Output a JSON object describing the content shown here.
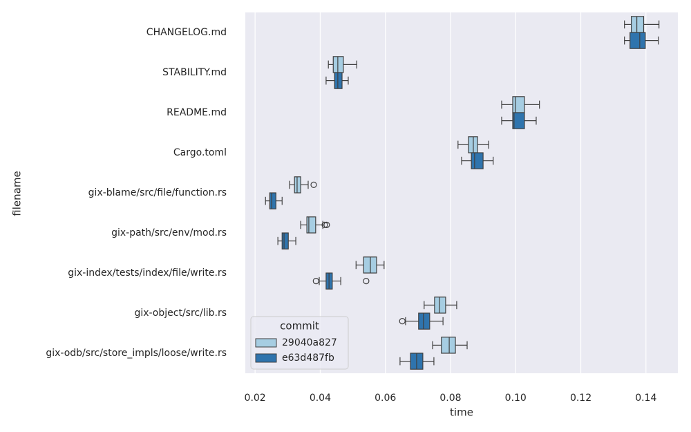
{
  "chart_data": {
    "type": "boxplot",
    "orientation": "horizontal",
    "x_label": "time",
    "y_label": "filename",
    "categories": [
      "CHANGELOG.md",
      "STABILITY.md",
      "README.md",
      "Cargo.toml",
      "gix-blame/src/file/function.rs",
      "gix-path/src/env/mod.rs",
      "gix-index/tests/index/file/write.rs",
      "gix-object/src/lib.rs",
      "gix-odb/src/store_impls/loose/write.rs"
    ],
    "xlim": [
      0.017,
      0.1498
    ],
    "xticks": [
      0.02,
      0.04,
      0.06,
      0.08,
      {
        "value": 0.1,
        "label": "0.10"
      },
      0.12,
      0.14
    ],
    "grid": true,
    "legend_title": "commit",
    "legend_position": "lower left",
    "series": [
      {
        "name": "29040a827",
        "color": "#a6cde2",
        "boxes": [
          {
            "min": 0.1334,
            "q1": 0.1355,
            "median": 0.1372,
            "q3": 0.1393,
            "max": 0.144,
            "outliers": []
          },
          {
            "min": 0.0425,
            "q1": 0.044,
            "median": 0.0454,
            "q3": 0.0471,
            "max": 0.0512,
            "outliers": []
          },
          {
            "min": 0.0957,
            "q1": 0.0991,
            "median": 0.0999,
            "q3": 0.1027,
            "max": 0.1073,
            "outliers": []
          },
          {
            "min": 0.0823,
            "q1": 0.0855,
            "median": 0.087,
            "q3": 0.0883,
            "max": 0.0917,
            "outliers": []
          },
          {
            "min": 0.0306,
            "q1": 0.0321,
            "median": 0.0329,
            "q3": 0.034,
            "max": 0.0363,
            "outliers": [
              0.038
            ]
          },
          {
            "min": 0.034,
            "q1": 0.0359,
            "median": 0.0365,
            "q3": 0.0386,
            "max": 0.0408,
            "outliers": [
              0.0414,
              0.042
            ]
          },
          {
            "min": 0.051,
            "q1": 0.0533,
            "median": 0.0554,
            "q3": 0.0573,
            "max": 0.0596,
            "outliers": []
          },
          {
            "min": 0.0719,
            "q1": 0.0751,
            "median": 0.0766,
            "q3": 0.0785,
            "max": 0.0819,
            "outliers": []
          },
          {
            "min": 0.0745,
            "q1": 0.0772,
            "median": 0.0796,
            "q3": 0.0815,
            "max": 0.0851,
            "outliers": []
          }
        ]
      },
      {
        "name": "e63d487fb",
        "color": "#2f74ad",
        "boxes": [
          {
            "min": 0.1334,
            "q1": 0.1351,
            "median": 0.1381,
            "q3": 0.1398,
            "max": 0.1438,
            "outliers": []
          },
          {
            "min": 0.0418,
            "q1": 0.0444,
            "median": 0.0454,
            "q3": 0.0467,
            "max": 0.0486,
            "outliers": []
          },
          {
            "min": 0.0957,
            "q1": 0.0991,
            "median": 0.0995,
            "q3": 0.1027,
            "max": 0.1063,
            "outliers": []
          },
          {
            "min": 0.0834,
            "q1": 0.0864,
            "median": 0.0874,
            "q3": 0.09,
            "max": 0.0931,
            "outliers": []
          },
          {
            "min": 0.0232,
            "q1": 0.0245,
            "median": 0.0251,
            "q3": 0.0264,
            "max": 0.0283,
            "outliers": []
          },
          {
            "min": 0.027,
            "q1": 0.0283,
            "median": 0.0289,
            "q3": 0.0302,
            "max": 0.0325,
            "outliers": []
          },
          {
            "min": 0.0397,
            "q1": 0.0418,
            "median": 0.0427,
            "q3": 0.0437,
            "max": 0.0463,
            "outliers": [
              0.0387,
              0.0541
            ]
          },
          {
            "min": 0.0662,
            "q1": 0.0702,
            "median": 0.0717,
            "q3": 0.0736,
            "max": 0.0777,
            "outliers": [
              0.0652
            ]
          },
          {
            "min": 0.0645,
            "q1": 0.0677,
            "median": 0.0696,
            "q3": 0.0715,
            "max": 0.0749,
            "outliers": []
          }
        ]
      }
    ]
  }
}
